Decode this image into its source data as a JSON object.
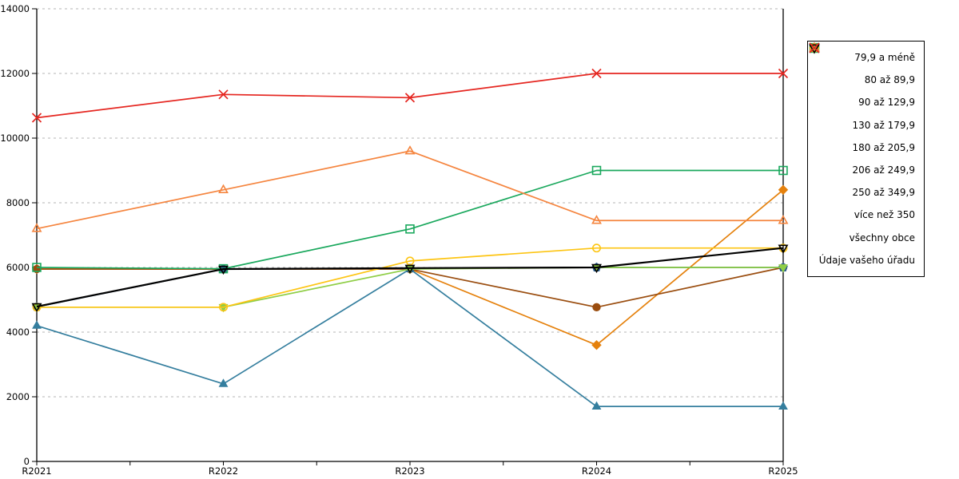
{
  "chart_data": {
    "type": "line",
    "categories": [
      "R2021",
      "R2022",
      "R2023",
      "R2024",
      "R2025"
    ],
    "ylim": [
      0,
      14000
    ],
    "ytick_step": 2000,
    "ytick_labels": [
      "0",
      "2000",
      "4000",
      "6000",
      "8000",
      "10000",
      "12000",
      "14000"
    ],
    "grid": "horizontal-dashed",
    "legend_position": "right-outside",
    "series": [
      {
        "name": "79,9 a méně",
        "marker": "diamond",
        "fill": "filled",
        "color": "#e5810c",
        "values": [
          5950,
          5950,
          5950,
          3600,
          8400
        ]
      },
      {
        "name": "80 až 89,9",
        "marker": "circle",
        "fill": "filled",
        "color": "#9a4d0f",
        "values": [
          5950,
          5950,
          5950,
          4770,
          6000
        ]
      },
      {
        "name": "90 až 129,9",
        "marker": "triangle-up",
        "fill": "filled",
        "color": "#347e9e",
        "values": [
          4200,
          2400,
          5950,
          1700,
          1700
        ]
      },
      {
        "name": "130 až 179,9",
        "marker": "pentagon",
        "fill": "filled",
        "color": "#2b5d8c",
        "values": [
          4780,
          5950,
          5970,
          6000,
          6000
        ]
      },
      {
        "name": "180 až 205,9",
        "marker": "triangle-down",
        "fill": "filled",
        "color": "#8fce46",
        "values": [
          4770,
          4770,
          5950,
          6000,
          6000
        ]
      },
      {
        "name": "206 až 249,9",
        "marker": "square",
        "fill": "open",
        "color": "#1aa85d",
        "values": [
          6000,
          5960,
          7190,
          9000,
          9000
        ]
      },
      {
        "name": "250 až 349,9",
        "marker": "circle",
        "fill": "open",
        "color": "#fdc513",
        "values": [
          4770,
          4770,
          6200,
          6600,
          6600
        ]
      },
      {
        "name": "více než 350",
        "marker": "triangle-up",
        "fill": "open",
        "color": "#f5853f",
        "values": [
          7200,
          8400,
          9600,
          7450,
          7450
        ]
      },
      {
        "name": "všechny obce",
        "marker": "triangle-down",
        "fill": "open",
        "color": "#000000",
        "values": [
          4790,
          5950,
          5980,
          6000,
          6600
        ]
      },
      {
        "name": "Údaje vašeho úřadu",
        "marker": "x",
        "fill": "open",
        "color": "#e52620",
        "values": [
          10630,
          11350,
          11250,
          12000,
          12000
        ]
      }
    ]
  }
}
